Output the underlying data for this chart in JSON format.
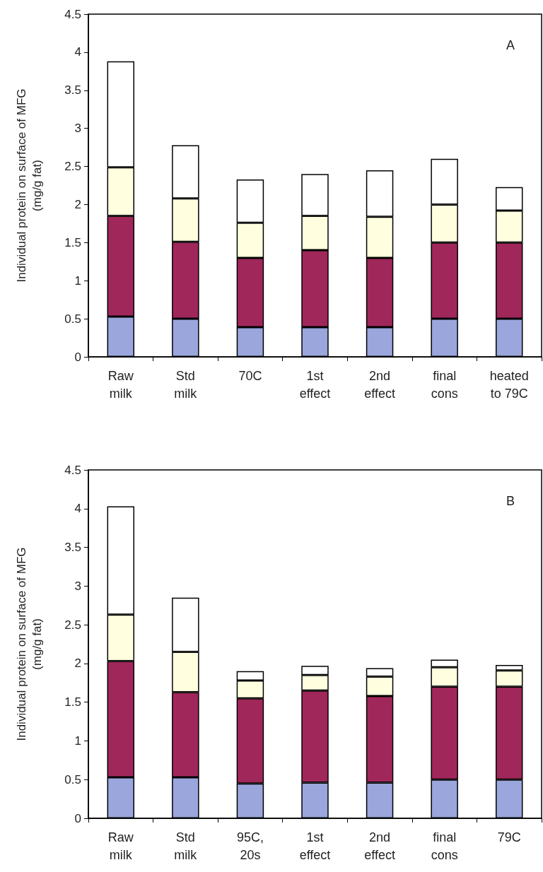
{
  "chart_data": [
    {
      "type": "bar",
      "stacked": true,
      "ylabel": "Individual protein on surface of MFG\n(mg/g fat)",
      "annotations": [
        "A"
      ],
      "categories": [
        "Raw\nmilk",
        "Std\nmilk",
        "70C",
        "1st\neffect",
        "2nd\neffect",
        "final\ncons",
        "heated\nto 79C"
      ],
      "ylim": [
        0,
        4.5
      ],
      "yticks": [
        0,
        0.5,
        1,
        1.5,
        2,
        2.5,
        3,
        3.5,
        4,
        4.5
      ],
      "grid": false,
      "series": [
        {
          "color": "#9aa6dc",
          "values": [
            0.53,
            0.5,
            0.39,
            0.39,
            0.39,
            0.5,
            0.5
          ]
        },
        {
          "color": "#a0275a",
          "values": [
            1.32,
            1.01,
            0.91,
            1.01,
            0.91,
            1.0,
            1.0
          ]
        },
        {
          "color": "#ffffe0",
          "values": [
            0.64,
            0.57,
            0.46,
            0.45,
            0.54,
            0.5,
            0.42
          ]
        },
        {
          "color": "#ffffff",
          "values": [
            1.39,
            0.7,
            0.57,
            0.55,
            0.61,
            0.6,
            0.31
          ]
        }
      ]
    },
    {
      "type": "bar",
      "stacked": true,
      "ylabel": "Individual protein on surface of MFG\n(mg/g fat)",
      "annotations": [
        "B"
      ],
      "categories": [
        "Raw\nmilk",
        "Std\nmilk",
        "95C,\n20s",
        "1st\neffect",
        "2nd\neffect",
        "final\ncons",
        "79C"
      ],
      "ylim": [
        0,
        4.5
      ],
      "yticks": [
        0,
        0.5,
        1,
        1.5,
        2,
        2.5,
        3,
        3.5,
        4,
        4.5
      ],
      "grid": false,
      "series": [
        {
          "color": "#9aa6dc",
          "values": [
            0.53,
            0.53,
            0.45,
            0.46,
            0.46,
            0.5,
            0.5
          ]
        },
        {
          "color": "#a0275a",
          "values": [
            1.5,
            1.1,
            1.1,
            1.19,
            1.12,
            1.2,
            1.2
          ]
        },
        {
          "color": "#ffffe0",
          "values": [
            0.6,
            0.52,
            0.23,
            0.2,
            0.25,
            0.25,
            0.21
          ]
        },
        {
          "color": "#ffffff",
          "values": [
            1.4,
            0.7,
            0.12,
            0.12,
            0.11,
            0.1,
            0.07
          ]
        }
      ]
    }
  ]
}
